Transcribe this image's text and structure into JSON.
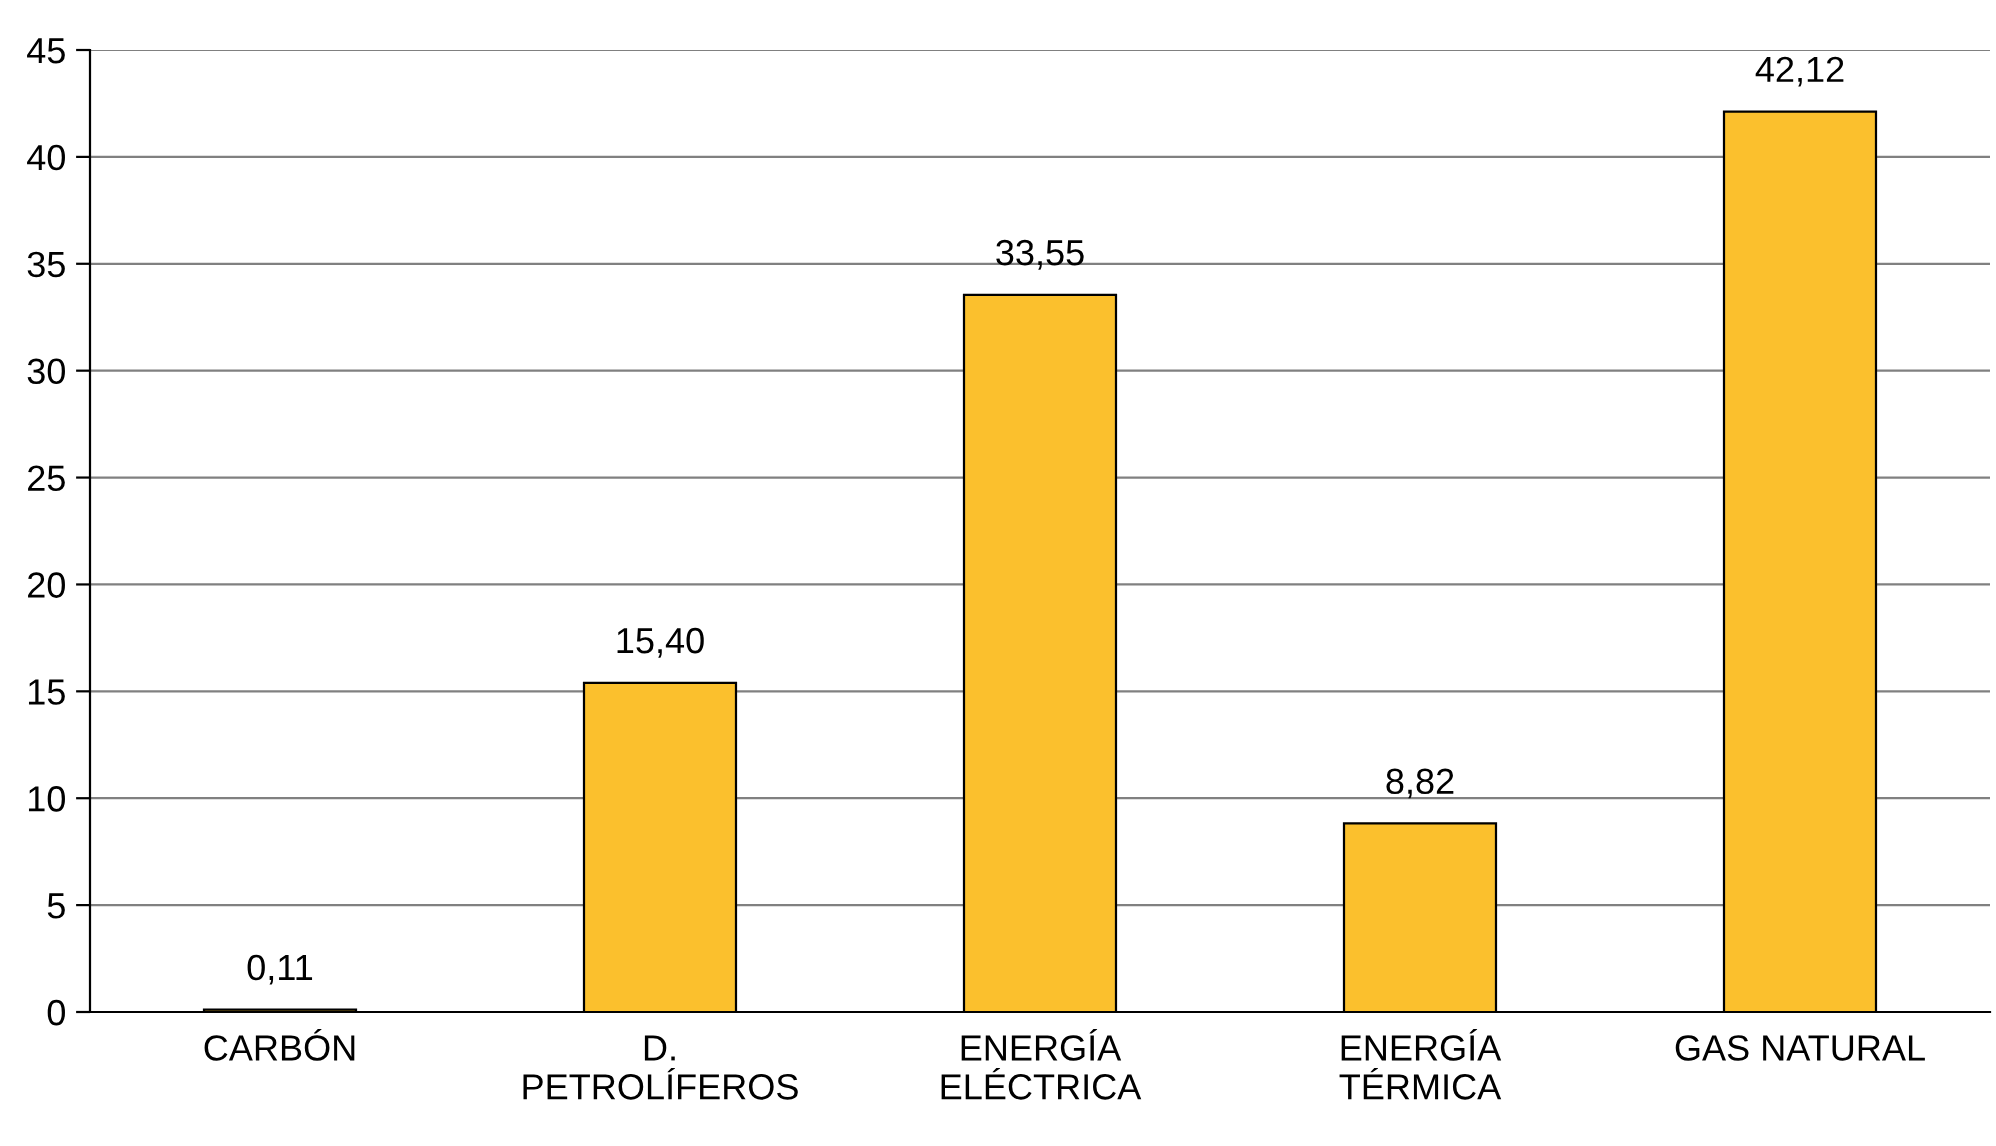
{
  "chart_data": {
    "type": "bar",
    "categories": [
      "CARBÓN",
      "D.\nPETROLÍFEROS",
      "ENERGÍA\nELÉCTRICA",
      "ENERGÍA\nTÉRMICA",
      "GAS NATURAL"
    ],
    "values": [
      0.11,
      15.4,
      33.55,
      8.82,
      42.12
    ],
    "value_labels": [
      "0,11",
      "15,40",
      "33,55",
      "8,82",
      "42,12"
    ],
    "color": "#fbc02d",
    "ylim": [
      0,
      45
    ],
    "yticks": [
      0,
      5,
      10,
      15,
      20,
      25,
      30,
      35,
      40,
      45
    ],
    "grid": "y",
    "legend": false
  }
}
